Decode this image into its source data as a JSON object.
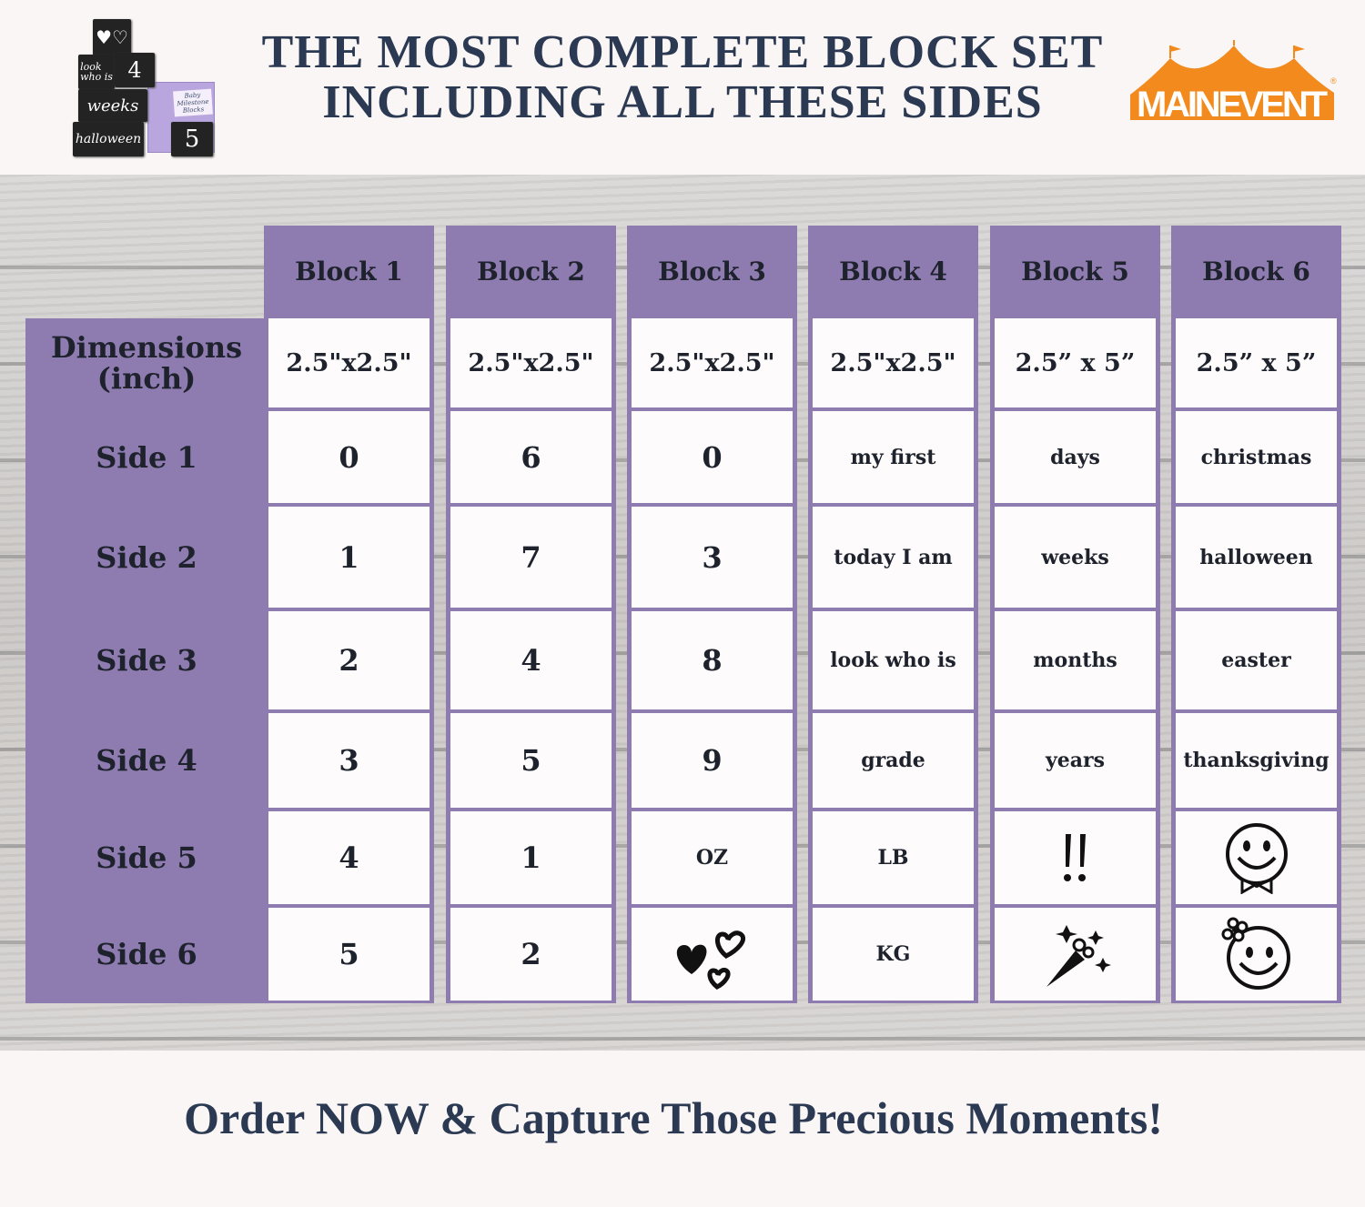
{
  "header": {
    "title_line1": "THE MOST COMPLETE BLOCK SET",
    "title_line2": "INCLUDING ALL THESE SIDES",
    "product_image_text": [
      "look who is",
      "4",
      "weeks",
      "halloween",
      "4",
      "5",
      "Baby Milestone Blocks"
    ],
    "logo_text": "MAINEVENT",
    "logo_mark": "®"
  },
  "colors": {
    "purple": "#8e7bb0",
    "title": "#2b3a52",
    "logo_orange": "#f28a1e"
  },
  "table": {
    "row_labels": [
      "Dimensions (inch)",
      "Side 1",
      "Side 2",
      "Side 3",
      "Side 4",
      "Side 5",
      "Side 6"
    ],
    "columns": [
      {
        "header": "Block 1",
        "cells": [
          "2.5\"x2.5\"",
          "0",
          "1",
          "2",
          "3",
          "4",
          "5"
        ]
      },
      {
        "header": "Block 2",
        "cells": [
          "2.5\"x2.5\"",
          "6",
          "7",
          "4",
          "5",
          "1",
          "2"
        ]
      },
      {
        "header": "Block 3",
        "cells": [
          "2.5\"x2.5\"",
          "0",
          "3",
          "8",
          "9",
          "OZ",
          "hearts-icon"
        ]
      },
      {
        "header": "Block 4",
        "cells": [
          "2.5\"x2.5\"",
          "my first",
          "today I am",
          "look who is",
          "grade",
          "LB",
          "KG"
        ]
      },
      {
        "header": "Block 5",
        "cells": [
          "2.5” x 5”",
          "days",
          "weeks",
          "months",
          "years",
          "exclamation-icon",
          "bouquet-icon"
        ]
      },
      {
        "header": "Block 6",
        "cells": [
          "2.5” x 5”",
          "christmas",
          "halloween",
          "easter",
          "thanksgiving",
          "smiley-bowtie-icon",
          "smiley-flower-icon"
        ]
      }
    ]
  },
  "footer": {
    "tagline": "Order NOW & Capture Those Precious Moments!"
  }
}
